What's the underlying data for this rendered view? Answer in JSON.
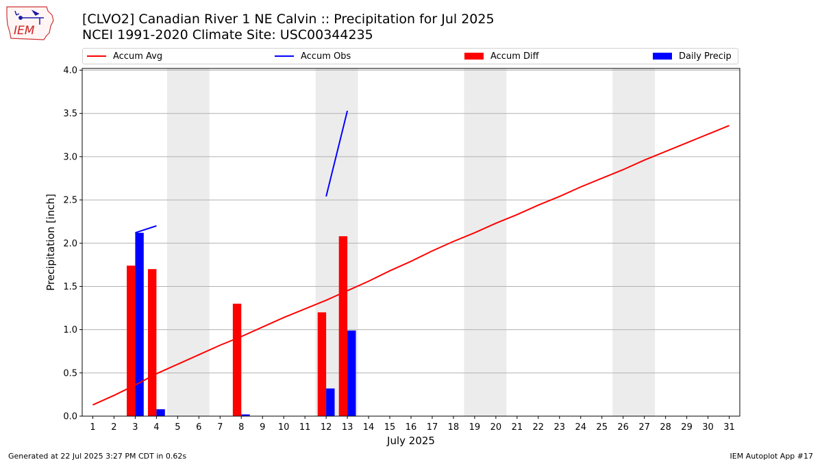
{
  "header": {
    "title_line1": "[CLVO2] Canadian River 1 NE Calvin :: Precipitation for Jul 2025",
    "title_line2": "NCEI 1991-2020 Climate Site: USC00344235",
    "logo_text": "IEM"
  },
  "legend": {
    "items": [
      {
        "label": "Accum Avg",
        "kind": "line",
        "color": "#ff0000"
      },
      {
        "label": "Accum Obs",
        "kind": "line",
        "color": "#0000ff"
      },
      {
        "label": "Accum Diff",
        "kind": "patch",
        "color": "#ff0000"
      },
      {
        "label": "Daily Precip",
        "kind": "patch",
        "color": "#0000ff"
      }
    ]
  },
  "footer": {
    "left": "Generated at 22 Jul 2025 3:27 PM CDT in 0.62s",
    "right": "IEM Autoplot App #17"
  },
  "chart_data": {
    "type": "bar",
    "title": "[CLVO2] Canadian River 1 NE Calvin :: Precipitation for Jul 2025",
    "subtitle": "NCEI 1991-2020 Climate Site: USC00344235",
    "xlabel": "July 2025",
    "ylabel": "Precipitation [inch]",
    "ylim": [
      0,
      4.02
    ],
    "xlim": [
      0.5,
      31.5
    ],
    "yticks": [
      "0.0",
      "0.5",
      "1.0",
      "1.5",
      "2.0",
      "2.5",
      "3.0",
      "3.5",
      "4.0"
    ],
    "ytick_values": [
      0,
      0.5,
      1.0,
      1.5,
      2.0,
      2.5,
      3.0,
      3.5,
      4.0
    ],
    "categories": [
      "1",
      "2",
      "3",
      "4",
      "5",
      "6",
      "7",
      "8",
      "9",
      "10",
      "11",
      "12",
      "13",
      "14",
      "15",
      "16",
      "17",
      "18",
      "19",
      "20",
      "21",
      "22",
      "23",
      "24",
      "25",
      "26",
      "27",
      "28",
      "29",
      "30",
      "31"
    ],
    "grid": "horizontal",
    "legend_position": "top",
    "weekend_shading": [
      [
        4.5,
        6.5
      ],
      [
        11.5,
        13.5
      ],
      [
        18.5,
        20.5
      ],
      [
        25.5,
        27.5
      ]
    ],
    "shade_color": "#ececec",
    "series": [
      {
        "name": "Accum Avg",
        "type": "line",
        "color": "#ff0000",
        "x": [
          1,
          2,
          3,
          4,
          5,
          6,
          7,
          8,
          9,
          10,
          11,
          12,
          13,
          14,
          15,
          16,
          17,
          18,
          19,
          20,
          21,
          22,
          23,
          24,
          25,
          26,
          27,
          28,
          29,
          30,
          31
        ],
        "values": [
          0.13,
          0.24,
          0.36,
          0.49,
          0.6,
          0.71,
          0.82,
          0.92,
          1.03,
          1.14,
          1.24,
          1.34,
          1.45,
          1.56,
          1.68,
          1.79,
          1.91,
          2.02,
          2.12,
          2.23,
          2.33,
          2.44,
          2.54,
          2.65,
          2.75,
          2.85,
          2.96,
          3.06,
          3.16,
          3.26,
          3.36
        ]
      },
      {
        "name": "Accum Obs",
        "type": "line",
        "color": "#0000ff",
        "segments": [
          {
            "x": [
              3,
              4
            ],
            "values": [
              2.12,
              2.2
            ]
          },
          {
            "x": [
              12,
              13
            ],
            "values": [
              2.54,
              3.53
            ]
          }
        ]
      },
      {
        "name": "Accum Diff",
        "type": "bar",
        "color": "#ff0000",
        "x": [
          3,
          4,
          8,
          12,
          13
        ],
        "values": [
          1.74,
          1.7,
          1.3,
          1.2,
          2.08
        ]
      },
      {
        "name": "Daily Precip",
        "type": "bar",
        "color": "#0000ff",
        "x": [
          3,
          4,
          8,
          12,
          13
        ],
        "values": [
          2.12,
          0.08,
          0.02,
          0.32,
          0.99
        ]
      }
    ]
  }
}
